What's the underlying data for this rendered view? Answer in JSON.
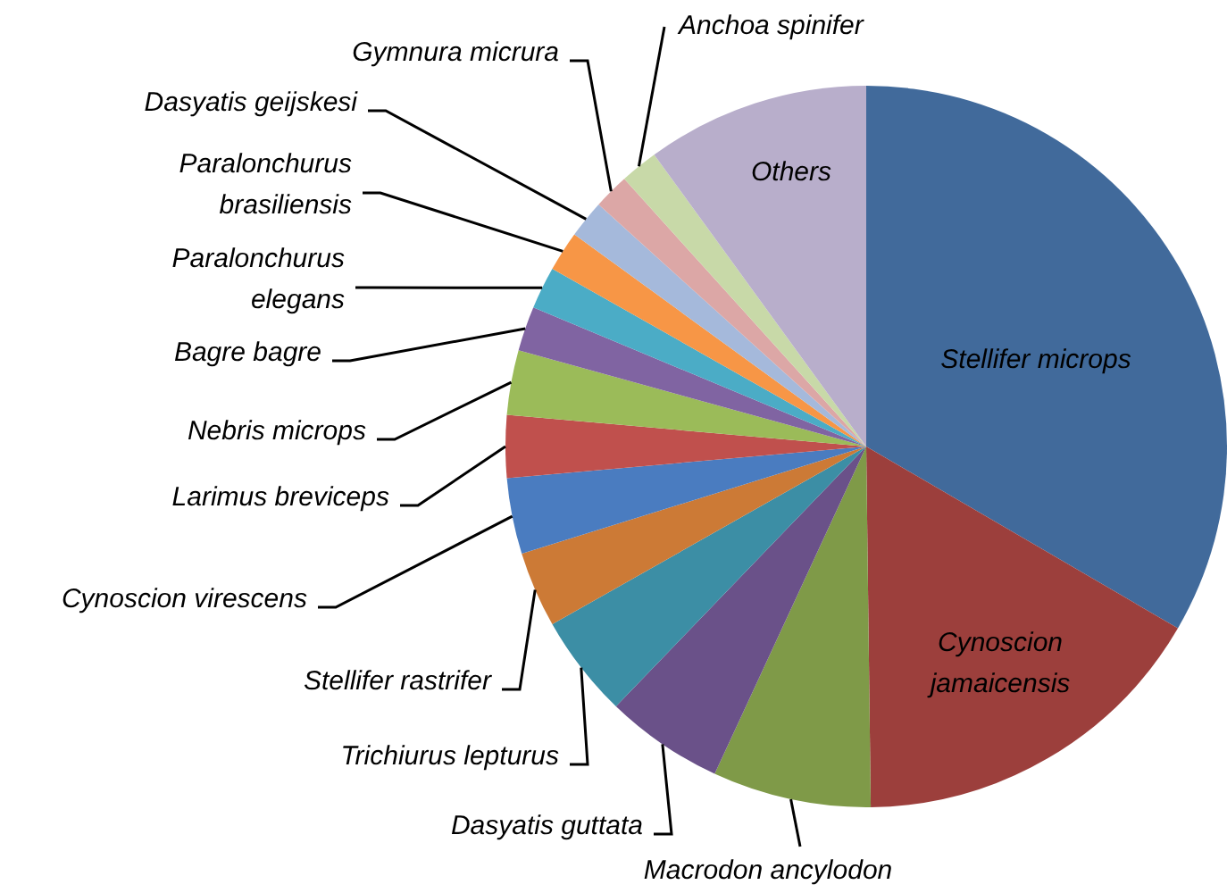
{
  "chart_data": {
    "type": "pie",
    "categories": [
      "Stellifer microps",
      "Cynoscion jamaicensis",
      "Macrodon ancylodon",
      "Dasyatis guttata",
      "Trichiurus lepturus",
      "Stellifer rastrifer",
      "Cynoscion virescens",
      "Larimus breviceps",
      "Nebris microps",
      "Bagre bagre",
      "Paralonchurus elegans",
      "Paralonchurus brasiliensis",
      "Dasyatis geijskesi",
      "Gymnura micrura",
      "Anchoa spinifer",
      "Others"
    ],
    "values": [
      33.4,
      16.4,
      7.1,
      5.3,
      4.6,
      3.4,
      3.4,
      2.8,
      2.9,
      2.0,
      1.9,
      1.8,
      1.7,
      1.6,
      1.7,
      10.0
    ],
    "colors": [
      "#416a9b",
      "#9c3f3c",
      "#7f9a48",
      "#6a5189",
      "#3c8ea5",
      "#cc7a36",
      "#4a7cc0",
      "#c0504d",
      "#9bbb59",
      "#8064a2",
      "#4bacc6",
      "#f79646",
      "#a5b9db",
      "#dca7a6",
      "#c8d9a8",
      "#b8aecb"
    ],
    "legend": false
  }
}
